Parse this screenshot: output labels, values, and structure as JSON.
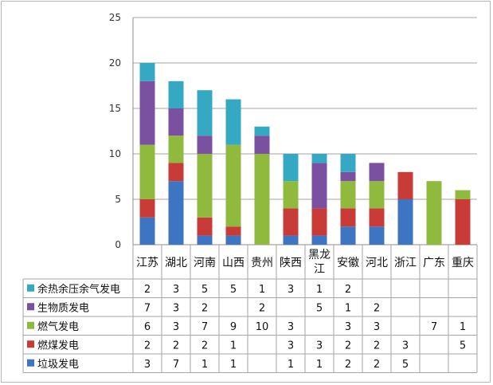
{
  "chart_data": {
    "type": "bar",
    "stacked": true,
    "categories": [
      "江苏",
      "湖北",
      "河南",
      "山西",
      "贵州",
      "陕西",
      "黑龙\n江",
      "安徽",
      "河北",
      "浙江",
      "广东",
      "重庆"
    ],
    "series": [
      {
        "name": "垃圾发电",
        "color": "#3d75c2",
        "values": [
          3,
          7,
          1,
          1,
          null,
          1,
          1,
          2,
          2,
          5,
          null,
          null
        ]
      },
      {
        "name": "燃煤发电",
        "color": "#c83b37",
        "values": [
          2,
          2,
          2,
          1,
          null,
          3,
          3,
          2,
          2,
          3,
          null,
          5
        ]
      },
      {
        "name": "燃气发电",
        "color": "#8fba3d",
        "values": [
          6,
          3,
          7,
          9,
          10,
          3,
          null,
          3,
          3,
          null,
          7,
          1
        ]
      },
      {
        "name": "生物质发电",
        "color": "#7a51a0",
        "values": [
          7,
          3,
          2,
          null,
          2,
          null,
          5,
          1,
          2,
          null,
          null,
          null
        ]
      },
      {
        "name": "余热余压余气发电",
        "color": "#35a8c3",
        "values": [
          2,
          3,
          5,
          5,
          1,
          3,
          1,
          2,
          null,
          null,
          null,
          null
        ]
      }
    ],
    "ylim": [
      0,
      25
    ],
    "yticks": [
      0,
      5,
      10,
      15,
      20,
      25
    ],
    "grid": true,
    "legend": "data-table"
  }
}
